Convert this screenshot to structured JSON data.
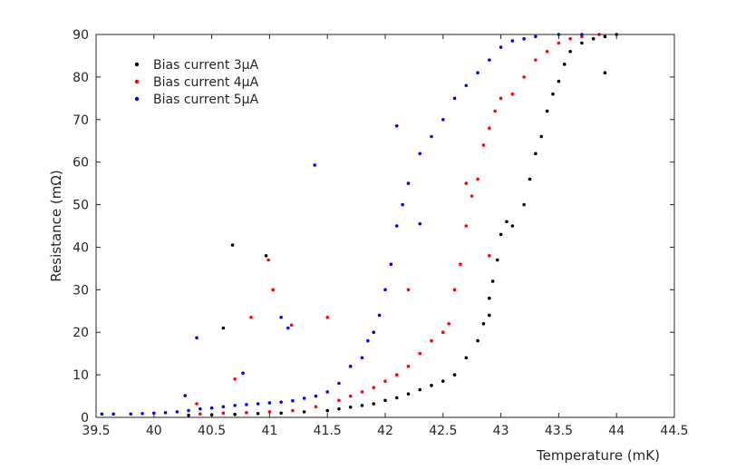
{
  "chart_data": {
    "type": "scatter",
    "title": "",
    "xlabel": "Temperature (mK)",
    "ylabel": "Resistance (mΩ)",
    "xlim": [
      39.5,
      44.5
    ],
    "ylim": [
      0,
      90
    ],
    "xticks": [
      39.5,
      40,
      40.5,
      41,
      41.5,
      42,
      42.5,
      43,
      43.5,
      44,
      44.5
    ],
    "yticks": [
      0,
      10,
      20,
      30,
      40,
      50,
      60,
      70,
      80,
      90
    ],
    "grid": false,
    "legend_position": "top-left",
    "series": [
      {
        "name": "Bias current 3μA",
        "color": "#000000",
        "points": [
          [
            40.3,
            0.5
          ],
          [
            40.5,
            0.6
          ],
          [
            40.7,
            0.7
          ],
          [
            40.9,
            0.9
          ],
          [
            41.1,
            1.0
          ],
          [
            41.3,
            1.3
          ],
          [
            41.5,
            1.6
          ],
          [
            41.6,
            2.0
          ],
          [
            41.7,
            2.4
          ],
          [
            41.8,
            2.8
          ],
          [
            41.9,
            3.2
          ],
          [
            42.0,
            4.0
          ],
          [
            42.1,
            4.6
          ],
          [
            42.2,
            5.5
          ],
          [
            42.3,
            6.5
          ],
          [
            42.4,
            7.5
          ],
          [
            42.5,
            8.5
          ],
          [
            42.6,
            10.0
          ],
          [
            42.7,
            14.0
          ],
          [
            42.8,
            18.0
          ],
          [
            42.85,
            22.0
          ],
          [
            42.9,
            28.0
          ],
          [
            42.93,
            32.0
          ],
          [
            42.97,
            37.0
          ],
          [
            43.0,
            43.0
          ],
          [
            43.05,
            46.0
          ],
          [
            43.1,
            45.0
          ],
          [
            43.2,
            50.0
          ],
          [
            43.25,
            56.0
          ],
          [
            43.3,
            62.0
          ],
          [
            43.35,
            66.0
          ],
          [
            43.4,
            72.0
          ],
          [
            43.45,
            76.0
          ],
          [
            43.5,
            79.0
          ],
          [
            43.55,
            83.0
          ],
          [
            43.6,
            86.0
          ],
          [
            43.7,
            88.0
          ],
          [
            43.8,
            89.0
          ],
          [
            43.9,
            89.5
          ],
          [
            44.0,
            90.0
          ],
          [
            43.9,
            81.0
          ],
          [
            42.9,
            24.0
          ],
          [
            40.68,
            40.5
          ],
          [
            40.97,
            38.0
          ],
          [
            40.6,
            21.0
          ]
        ]
      },
      {
        "name": "Bias current 4μA",
        "color": "#ff0000",
        "points": [
          [
            40.4,
            0.8
          ],
          [
            40.6,
            1.0
          ],
          [
            40.8,
            1.1
          ],
          [
            41.0,
            1.3
          ],
          [
            41.2,
            1.6
          ],
          [
            41.4,
            2.5
          ],
          [
            41.6,
            4.0
          ],
          [
            41.7,
            5.0
          ],
          [
            41.8,
            6.0
          ],
          [
            41.9,
            7.0
          ],
          [
            42.0,
            8.5
          ],
          [
            42.1,
            10.0
          ],
          [
            42.2,
            12.0
          ],
          [
            42.3,
            15.0
          ],
          [
            42.4,
            18.0
          ],
          [
            42.5,
            20.0
          ],
          [
            42.55,
            22.0
          ],
          [
            42.6,
            30.0
          ],
          [
            42.65,
            36.0
          ],
          [
            42.7,
            45.0
          ],
          [
            42.75,
            52.0
          ],
          [
            42.8,
            56.0
          ],
          [
            42.85,
            64.0
          ],
          [
            42.9,
            68.0
          ],
          [
            42.95,
            72.0
          ],
          [
            43.0,
            75.0
          ],
          [
            43.1,
            76.0
          ],
          [
            43.2,
            80.0
          ],
          [
            43.3,
            84.0
          ],
          [
            43.4,
            86.0
          ],
          [
            43.5,
            88.0
          ],
          [
            43.6,
            89.0
          ],
          [
            43.7,
            89.5
          ],
          [
            43.85,
            90.0
          ],
          [
            42.7,
            55.0
          ],
          [
            42.9,
            38.0
          ],
          [
            42.2,
            30.0
          ],
          [
            40.99,
            37.0
          ],
          [
            41.03,
            30.0
          ],
          [
            40.84,
            23.5
          ],
          [
            41.5,
            23.5
          ],
          [
            41.19,
            21.7
          ],
          [
            40.7,
            9.0
          ],
          [
            40.37,
            3.2
          ]
        ]
      },
      {
        "name": "Bias current 5μA",
        "color": "#0000ff",
        "points": [
          [
            39.55,
            0.8
          ],
          [
            39.65,
            0.8
          ],
          [
            39.8,
            0.8
          ],
          [
            39.9,
            0.9
          ],
          [
            40.0,
            1.0
          ],
          [
            40.1,
            1.1
          ],
          [
            40.2,
            1.3
          ],
          [
            40.3,
            1.6
          ],
          [
            40.4,
            2.0
          ],
          [
            40.5,
            2.2
          ],
          [
            40.6,
            2.5
          ],
          [
            40.7,
            2.8
          ],
          [
            40.8,
            3.0
          ],
          [
            40.9,
            3.2
          ],
          [
            41.0,
            3.4
          ],
          [
            41.1,
            3.6
          ],
          [
            41.2,
            3.9
          ],
          [
            41.3,
            4.5
          ],
          [
            41.4,
            5.0
          ],
          [
            41.5,
            6.0
          ],
          [
            41.6,
            8.0
          ],
          [
            41.7,
            12.0
          ],
          [
            41.8,
            14.0
          ],
          [
            41.85,
            18.0
          ],
          [
            41.9,
            20.0
          ],
          [
            41.95,
            24.0
          ],
          [
            42.0,
            30.0
          ],
          [
            42.05,
            36.0
          ],
          [
            42.1,
            45.0
          ],
          [
            42.15,
            50.0
          ],
          [
            42.2,
            55.0
          ],
          [
            42.3,
            62.0
          ],
          [
            42.4,
            66.0
          ],
          [
            42.5,
            70.0
          ],
          [
            42.6,
            75.0
          ],
          [
            42.7,
            78.0
          ],
          [
            42.8,
            81.0
          ],
          [
            42.9,
            84.0
          ],
          [
            43.0,
            87.0
          ],
          [
            43.1,
            88.5
          ],
          [
            43.2,
            89.0
          ],
          [
            43.3,
            89.5
          ],
          [
            43.5,
            90.0
          ],
          [
            43.7,
            90.0
          ],
          [
            41.39,
            59.3
          ],
          [
            42.1,
            68.5
          ],
          [
            42.3,
            45.5
          ],
          [
            41.1,
            23.5
          ],
          [
            40.37,
            18.7
          ],
          [
            40.77,
            10.4
          ],
          [
            40.27,
            5.1
          ],
          [
            41.16,
            21.0
          ]
        ]
      }
    ]
  }
}
